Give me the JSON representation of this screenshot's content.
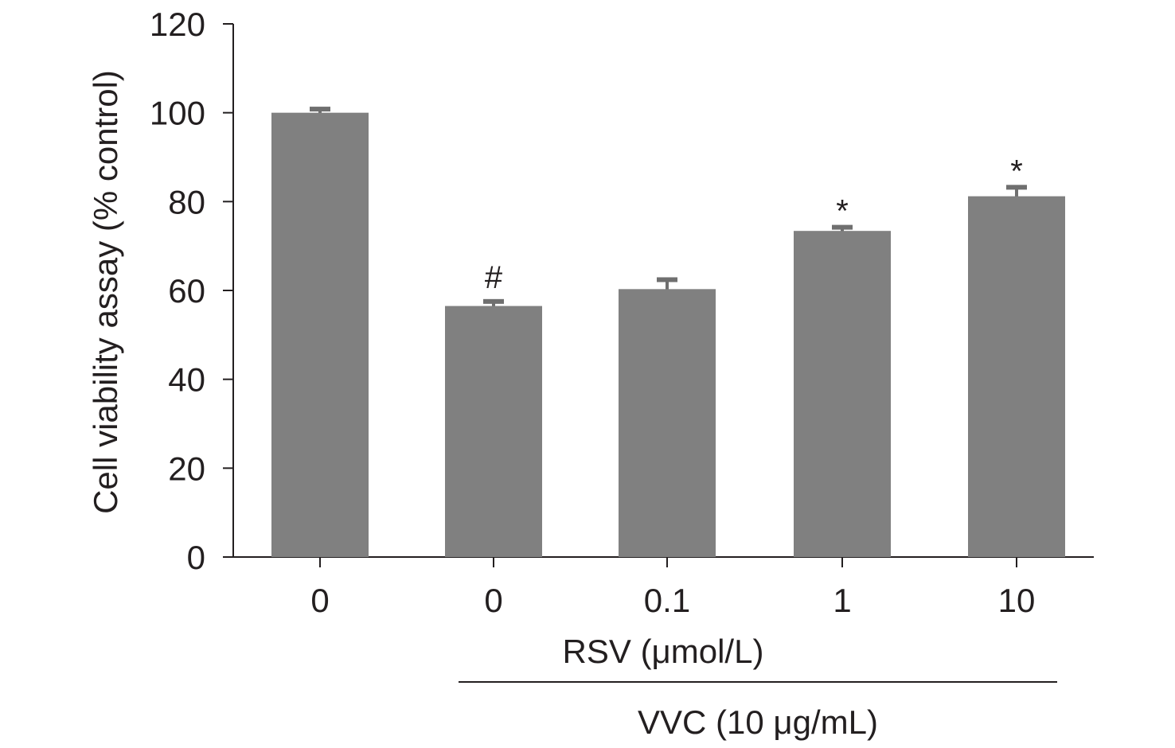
{
  "chart_data": {
    "type": "bar",
    "categories": [
      "0",
      "0",
      "0.1",
      "1",
      "10"
    ],
    "series": [
      {
        "values": [
          100,
          56.5,
          60.3,
          73.4,
          81.2
        ],
        "errors": [
          1.0,
          1.2,
          2.3,
          1.0,
          2.2
        ]
      }
    ],
    "significance": [
      "",
      "#",
      "",
      "*",
      "*"
    ],
    "xlabel": "RSV (μmol/L)",
    "group_label": "VVC (10 μg/mL)",
    "ylabel": "Cell viability assay (% control)",
    "ylim": [
      0,
      120
    ],
    "yticks": [
      0,
      20,
      40,
      60,
      80,
      100,
      120
    ],
    "grid": false,
    "bar_color": "#808080",
    "error_color": "#6f6f6f"
  }
}
